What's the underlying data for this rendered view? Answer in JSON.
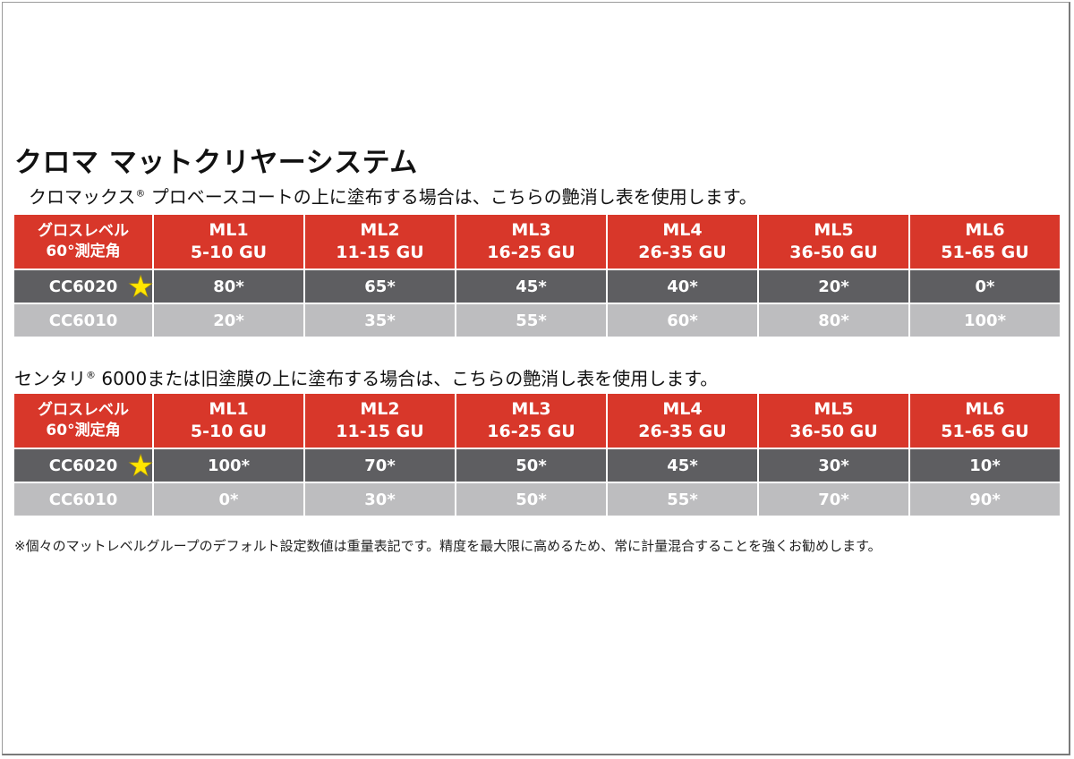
{
  "title": "クロマ マットクリヤーシステム",
  "section1": {
    "prefix": "クロマックス",
    "mark": "®",
    "suffix": " プロベースコートの上に塗布する場合は、こちらの艶消し表を使用します。"
  },
  "section2": {
    "prefix": "センタリ",
    "mark": "®",
    "suffix": " 6000または旧塗膜の上に塗布する場合は、こちらの艶消し表を使用します。"
  },
  "header": {
    "label_line1": "グロスレベル",
    "label_line2": "60°測定角",
    "levels": [
      {
        "name": "ML1",
        "range": "5-10 GU"
      },
      {
        "name": "ML2",
        "range": "11-15 GU"
      },
      {
        "name": "ML3",
        "range": "16-25 GU"
      },
      {
        "name": "ML4",
        "range": "26-35 GU"
      },
      {
        "name": "ML5",
        "range": "36-50 GU"
      },
      {
        "name": "ML6",
        "range": "51-65 GU"
      }
    ]
  },
  "table1": {
    "rows": [
      {
        "model": "CC6020",
        "values": [
          "80*",
          "65*",
          "45*",
          "40*",
          "20*",
          "0*"
        ]
      },
      {
        "model": "CC6010",
        "values": [
          "20*",
          "35*",
          "55*",
          "60*",
          "80*",
          "100*"
        ]
      }
    ]
  },
  "table2": {
    "rows": [
      {
        "model": "CC6020",
        "values": [
          "100*",
          "70*",
          "50*",
          "45*",
          "30*",
          "10*"
        ]
      },
      {
        "model": "CC6010",
        "values": [
          "0*",
          "30*",
          "50*",
          "55*",
          "70*",
          "90*"
        ]
      }
    ]
  },
  "star_glyph": "★",
  "colors": {
    "header": "#d8372a",
    "row_dark": "#5e5e61",
    "row_light": "#bdbdbf",
    "star": "#ffe600"
  },
  "footnote": "※個々のマットレベルグループのデフォルト設定数値は重量表記です。精度を最大限に高めるため、常に計量混合することを強くお勧めします。"
}
